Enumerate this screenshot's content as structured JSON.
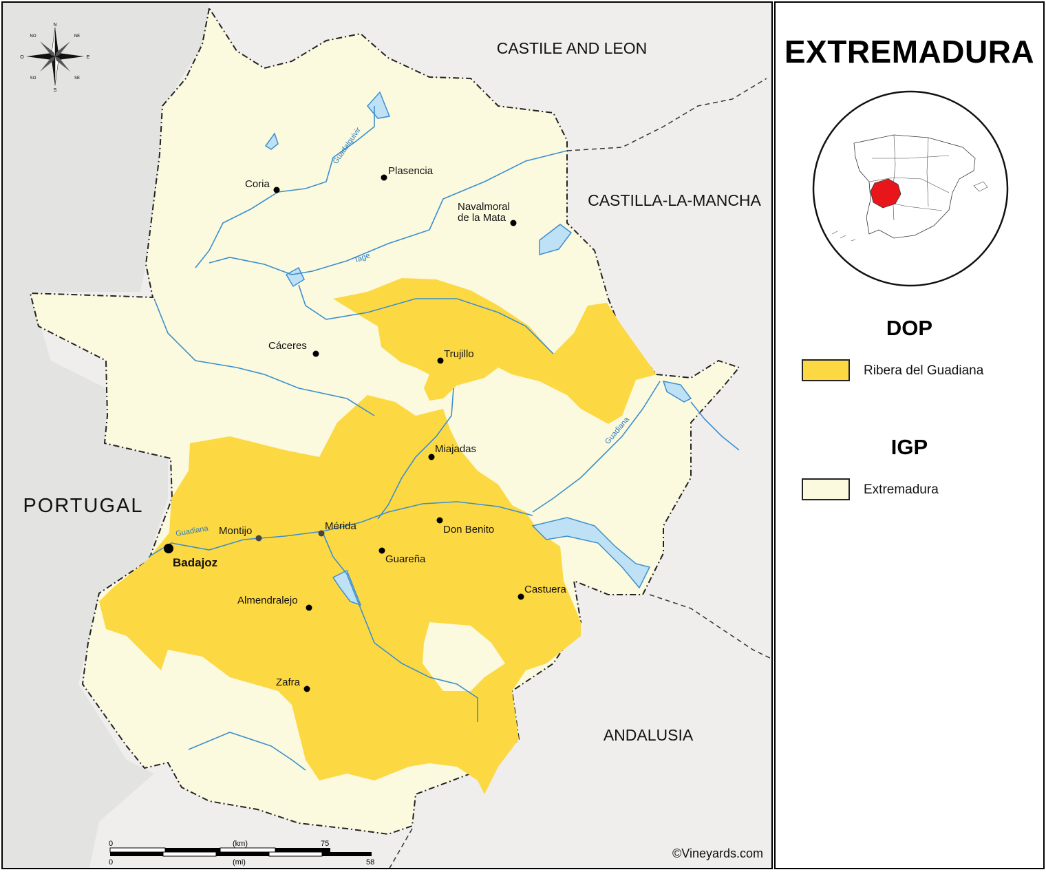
{
  "title": "EXTREMADURA",
  "legend": {
    "dop_heading": "DOP",
    "igp_heading": "IGP",
    "dop_items": [
      {
        "label": "Ribera del Guadiana",
        "color": "#fcd843"
      }
    ],
    "igp_items": [
      {
        "label": "Extremadura",
        "color": "#fbf9de"
      }
    ]
  },
  "neighbors": {
    "north": "CASTILE AND LEON",
    "east": "CASTILLA-LA-MANCHA",
    "south": "ANDALUSIA",
    "west": "PORTUGAL"
  },
  "cities": [
    {
      "name": "Coria"
    },
    {
      "name": "Plasencia"
    },
    {
      "name": "Navalmoral\nde la Mata"
    },
    {
      "name": "Cáceres"
    },
    {
      "name": "Trujillo"
    },
    {
      "name": "Miajadas"
    },
    {
      "name": "Mérida"
    },
    {
      "name": "Montijo"
    },
    {
      "name": "Badajoz"
    },
    {
      "name": "Don Benito"
    },
    {
      "name": "Guareña"
    },
    {
      "name": "Castuera"
    },
    {
      "name": "Almendralejo"
    },
    {
      "name": "Zafra"
    }
  ],
  "rivers": {
    "guadalquivir": "Guadalquivir",
    "tage": "Tage",
    "guadiana_east": "Guadiana",
    "guadiana_west": "Guadiana"
  },
  "compass": {
    "n": "N",
    "s": "S",
    "e": "E",
    "o": "O",
    "ne": "NE",
    "no": "NO",
    "se": "SE",
    "so": "SO"
  },
  "scale": {
    "km_unit": "(km)",
    "km_start": "0",
    "km_end": "75",
    "mi_unit": "(mi)",
    "mi_start": "0",
    "mi_end": "58"
  },
  "copyright": "©Vineyards.com",
  "colors": {
    "dop": "#fcd843",
    "igp": "#fbf9de",
    "outside": "#efeeec",
    "water": "#bfe1f6",
    "river": "#3a8fcf",
    "highlight": "#e8161b"
  }
}
